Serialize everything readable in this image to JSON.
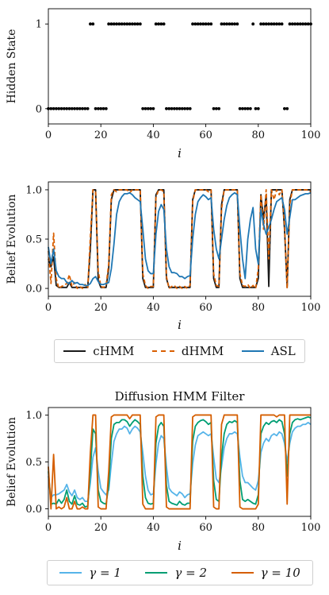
{
  "chart_data": [
    {
      "id": "hidden-state",
      "type": "scatter",
      "title": "",
      "xlabel": "i",
      "ylabel": "Hidden State",
      "xlim": [
        0,
        100
      ],
      "ylim": [
        -0.18,
        1.18
      ],
      "xticks": [
        "0",
        "20",
        "40",
        "60",
        "80",
        "100"
      ],
      "yticks": [
        "0",
        "1"
      ],
      "color": "#000000",
      "x": [
        0,
        1,
        2,
        3,
        4,
        5,
        6,
        7,
        8,
        9,
        10,
        11,
        12,
        13,
        14,
        15,
        16,
        17,
        18,
        19,
        20,
        21,
        22,
        23,
        24,
        25,
        26,
        27,
        28,
        29,
        30,
        31,
        32,
        33,
        34,
        35,
        36,
        37,
        38,
        39,
        40,
        41,
        42,
        43,
        44,
        45,
        46,
        47,
        48,
        49,
        50,
        51,
        52,
        53,
        54,
        55,
        56,
        57,
        58,
        59,
        60,
        61,
        62,
        63,
        64,
        65,
        66,
        67,
        68,
        69,
        70,
        71,
        72,
        73,
        74,
        75,
        76,
        77,
        78,
        79,
        80,
        81,
        82,
        83,
        84,
        85,
        86,
        87,
        88,
        89,
        90,
        91,
        92,
        93,
        94,
        95,
        96,
        97,
        98,
        99,
        100
      ],
      "values": [
        0,
        0,
        0,
        0,
        0,
        0,
        0,
        0,
        0,
        0,
        0,
        0,
        0,
        0,
        0,
        0,
        1,
        1,
        0,
        0,
        0,
        0,
        0,
        1,
        1,
        1,
        1,
        1,
        1,
        1,
        1,
        1,
        1,
        1,
        1,
        1,
        0,
        0,
        0,
        0,
        0,
        1,
        1,
        1,
        1,
        0,
        0,
        0,
        0,
        0,
        0,
        0,
        0,
        0,
        0,
        1,
        1,
        1,
        1,
        1,
        1,
        1,
        1,
        0,
        0,
        0,
        1,
        1,
        1,
        1,
        1,
        1,
        1,
        0,
        0,
        0,
        0,
        0,
        1,
        0,
        0,
        1,
        1,
        1,
        1,
        1,
        1,
        1,
        1,
        1,
        0,
        0,
        1,
        1,
        1,
        1,
        1,
        1,
        1,
        1,
        1
      ]
    },
    {
      "id": "belief-models",
      "type": "line",
      "title": "",
      "xlabel": "i",
      "ylabel": "Belief Evolution",
      "xlim": [
        0,
        100
      ],
      "ylim": [
        -0.08,
        1.08
      ],
      "xticks": [
        "0",
        "20",
        "40",
        "60",
        "80",
        "100"
      ],
      "yticks": [
        "0.0",
        "0.5",
        "1.0"
      ],
      "x": [
        0,
        1,
        2,
        3,
        4,
        5,
        6,
        7,
        8,
        9,
        10,
        11,
        12,
        13,
        14,
        15,
        16,
        17,
        18,
        19,
        20,
        21,
        22,
        23,
        24,
        25,
        26,
        27,
        28,
        29,
        30,
        31,
        32,
        33,
        34,
        35,
        36,
        37,
        38,
        39,
        40,
        41,
        42,
        43,
        44,
        45,
        46,
        47,
        48,
        49,
        50,
        51,
        52,
        53,
        54,
        55,
        56,
        57,
        58,
        59,
        60,
        61,
        62,
        63,
        64,
        65,
        66,
        67,
        68,
        69,
        70,
        71,
        72,
        73,
        74,
        75,
        76,
        77,
        78,
        79,
        80,
        81,
        82,
        83,
        84,
        85,
        86,
        87,
        88,
        89,
        90,
        91,
        92,
        93,
        94,
        95,
        96,
        97,
        98,
        99,
        100
      ],
      "series": [
        {
          "name": "cHMM",
          "color": "#1a1a1a",
          "dash": "",
          "values": [
            0.3,
            0.22,
            0.32,
            0.03,
            0.01,
            0.01,
            0.01,
            0.01,
            0.06,
            0.01,
            0.01,
            0.01,
            0.01,
            0.01,
            0.01,
            0.01,
            0.4,
            1.0,
            1.0,
            0.08,
            0.01,
            0.01,
            0.01,
            0.2,
            0.9,
            1.0,
            1.0,
            1.0,
            1.0,
            1.0,
            1.0,
            1.0,
            1.0,
            1.0,
            1.0,
            1.0,
            0.1,
            0.01,
            0.01,
            0.01,
            0.01,
            0.95,
            1.0,
            1.0,
            1.0,
            0.1,
            0.01,
            0.01,
            0.01,
            0.01,
            0.01,
            0.01,
            0.01,
            0.01,
            0.01,
            0.9,
            1.0,
            1.0,
            1.0,
            1.0,
            1.0,
            1.0,
            1.0,
            0.1,
            0.01,
            0.01,
            0.85,
            1.0,
            1.0,
            1.0,
            1.0,
            1.0,
            1.0,
            0.1,
            0.01,
            0.01,
            0.01,
            0.01,
            0.01,
            0.01,
            0.1,
            0.95,
            0.7,
            0.95,
            0.02,
            1.0,
            1.0,
            1.0,
            1.0,
            1.0,
            0.6,
            0.01,
            0.9,
            1.0,
            1.0,
            1.0,
            1.0,
            1.0,
            1.0,
            1.0,
            1.0
          ]
        },
        {
          "name": "dHMM",
          "color": "#d95f02",
          "dash": "5,3",
          "values": [
            0.38,
            0.05,
            0.56,
            0.1,
            0.0,
            0.02,
            0.03,
            0.05,
            0.14,
            0.02,
            0.06,
            0.0,
            0.02,
            0.0,
            0.04,
            0.0,
            0.52,
            1.0,
            0.98,
            0.18,
            0.02,
            0.01,
            0.03,
            0.25,
            0.95,
            1.0,
            0.98,
            1.0,
            1.0,
            1.0,
            1.0,
            0.97,
            1.0,
            1.0,
            1.0,
            1.0,
            0.15,
            0.03,
            0.0,
            0.02,
            0.02,
            0.92,
            1.0,
            1.0,
            0.98,
            0.12,
            0.0,
            0.02,
            0.03,
            0.0,
            0.02,
            0.0,
            0.02,
            0.0,
            0.03,
            0.88,
            1.0,
            1.0,
            1.0,
            1.0,
            1.0,
            0.98,
            1.0,
            0.15,
            0.03,
            0.02,
            0.8,
            1.0,
            1.0,
            1.0,
            1.0,
            1.0,
            1.0,
            0.15,
            0.03,
            0.02,
            0.04,
            0.0,
            0.03,
            0.0,
            0.2,
            0.95,
            0.6,
            1.0,
            0.3,
            1.0,
            0.9,
            1.0,
            0.95,
            1.0,
            0.65,
            0.0,
            0.85,
            1.0,
            1.0,
            1.0,
            1.0,
            1.0,
            1.0,
            1.0,
            0.98
          ]
        },
        {
          "name": "ASL",
          "color": "#1f77b4",
          "dash": "",
          "values": [
            0.42,
            0.25,
            0.4,
            0.18,
            0.12,
            0.1,
            0.1,
            0.06,
            0.05,
            0.08,
            0.05,
            0.06,
            0.04,
            0.04,
            0.03,
            0.03,
            0.05,
            0.1,
            0.12,
            0.07,
            0.04,
            0.04,
            0.05,
            0.06,
            0.2,
            0.45,
            0.75,
            0.88,
            0.93,
            0.96,
            0.96,
            0.97,
            0.95,
            0.92,
            0.9,
            0.88,
            0.6,
            0.3,
            0.18,
            0.15,
            0.15,
            0.55,
            0.78,
            0.85,
            0.8,
            0.4,
            0.22,
            0.16,
            0.16,
            0.15,
            0.12,
            0.12,
            0.1,
            0.12,
            0.13,
            0.5,
            0.75,
            0.88,
            0.92,
            0.95,
            0.93,
            0.9,
            0.92,
            0.6,
            0.4,
            0.3,
            0.5,
            0.7,
            0.84,
            0.92,
            0.95,
            0.97,
            0.95,
            0.6,
            0.3,
            0.1,
            0.5,
            0.7,
            0.82,
            0.4,
            0.25,
            0.8,
            0.65,
            0.55,
            0.62,
            0.7,
            0.8,
            0.88,
            0.9,
            0.92,
            0.8,
            0.55,
            0.72,
            0.9,
            0.9,
            0.92,
            0.94,
            0.95,
            0.96,
            0.96,
            0.97
          ]
        }
      ],
      "legend": "bottom-outside"
    },
    {
      "id": "diffusion-hmm",
      "type": "line",
      "title": "Diffusion HMM Filter",
      "xlabel": "i",
      "ylabel": "Belief Evolution",
      "xlim": [
        0,
        100
      ],
      "ylim": [
        -0.08,
        1.08
      ],
      "xticks": [
        "0",
        "20",
        "40",
        "60",
        "80",
        "100"
      ],
      "yticks": [
        "0.0",
        "0.5",
        "1.0"
      ],
      "x": [
        0,
        1,
        2,
        3,
        4,
        5,
        6,
        7,
        8,
        9,
        10,
        11,
        12,
        13,
        14,
        15,
        16,
        17,
        18,
        19,
        20,
        21,
        22,
        23,
        24,
        25,
        26,
        27,
        28,
        29,
        30,
        31,
        32,
        33,
        34,
        35,
        36,
        37,
        38,
        39,
        40,
        41,
        42,
        43,
        44,
        45,
        46,
        47,
        48,
        49,
        50,
        51,
        52,
        53,
        54,
        55,
        56,
        57,
        58,
        59,
        60,
        61,
        62,
        63,
        64,
        65,
        66,
        67,
        68,
        69,
        70,
        71,
        72,
        73,
        74,
        75,
        76,
        77,
        78,
        79,
        80,
        81,
        82,
        83,
        84,
        85,
        86,
        87,
        88,
        89,
        90,
        91,
        92,
        93,
        94,
        95,
        96,
        97,
        98,
        99,
        100
      ],
      "series": [
        {
          "name": "γ = 1",
          "color": "#56b4e9",
          "dash": "",
          "values": [
            0.35,
            0.12,
            0.15,
            0.15,
            0.16,
            0.18,
            0.2,
            0.26,
            0.18,
            0.14,
            0.2,
            0.12,
            0.1,
            0.12,
            0.08,
            0.08,
            0.28,
            0.55,
            0.65,
            0.4,
            0.22,
            0.18,
            0.15,
            0.2,
            0.48,
            0.72,
            0.8,
            0.85,
            0.85,
            0.88,
            0.86,
            0.8,
            0.85,
            0.88,
            0.86,
            0.82,
            0.6,
            0.35,
            0.2,
            0.15,
            0.16,
            0.48,
            0.7,
            0.78,
            0.75,
            0.45,
            0.22,
            0.18,
            0.16,
            0.14,
            0.18,
            0.16,
            0.12,
            0.15,
            0.16,
            0.48,
            0.68,
            0.78,
            0.8,
            0.82,
            0.8,
            0.78,
            0.8,
            0.55,
            0.32,
            0.28,
            0.45,
            0.65,
            0.75,
            0.8,
            0.8,
            0.82,
            0.8,
            0.55,
            0.35,
            0.28,
            0.28,
            0.25,
            0.22,
            0.2,
            0.3,
            0.6,
            0.7,
            0.75,
            0.72,
            0.78,
            0.8,
            0.78,
            0.82,
            0.8,
            0.7,
            0.5,
            0.7,
            0.82,
            0.86,
            0.88,
            0.88,
            0.9,
            0.9,
            0.92,
            0.9
          ]
        },
        {
          "name": "γ = 2",
          "color": "#009e73",
          "dash": "",
          "values": [
            0.4,
            0.05,
            0.06,
            0.05,
            0.1,
            0.06,
            0.1,
            0.2,
            0.08,
            0.05,
            0.14,
            0.05,
            0.04,
            0.06,
            0.02,
            0.03,
            0.4,
            0.85,
            0.8,
            0.2,
            0.08,
            0.06,
            0.05,
            0.25,
            0.75,
            0.9,
            0.92,
            0.92,
            0.95,
            0.95,
            0.93,
            0.88,
            0.92,
            0.95,
            0.93,
            0.9,
            0.35,
            0.12,
            0.06,
            0.05,
            0.06,
            0.7,
            0.88,
            0.92,
            0.88,
            0.25,
            0.08,
            0.06,
            0.05,
            0.04,
            0.08,
            0.05,
            0.04,
            0.06,
            0.06,
            0.72,
            0.88,
            0.92,
            0.94,
            0.95,
            0.93,
            0.9,
            0.92,
            0.3,
            0.1,
            0.08,
            0.55,
            0.8,
            0.9,
            0.93,
            0.92,
            0.94,
            0.92,
            0.3,
            0.1,
            0.08,
            0.1,
            0.08,
            0.06,
            0.05,
            0.15,
            0.8,
            0.88,
            0.92,
            0.9,
            0.93,
            0.94,
            0.92,
            0.95,
            0.93,
            0.8,
            0.35,
            0.8,
            0.92,
            0.95,
            0.96,
            0.95,
            0.96,
            0.97,
            0.98,
            0.97
          ]
        },
        {
          "name": "γ = 10",
          "color": "#d55e00",
          "dash": "",
          "values": [
            0.45,
            0.0,
            0.58,
            0.0,
            0.02,
            0.0,
            0.02,
            0.12,
            0.0,
            0.0,
            0.08,
            0.0,
            0.0,
            0.02,
            0.0,
            0.0,
            0.6,
            1.0,
            1.0,
            0.02,
            0.0,
            0.0,
            0.0,
            0.4,
            0.98,
            1.0,
            1.0,
            1.0,
            1.0,
            1.0,
            1.0,
            0.96,
            1.0,
            1.0,
            1.0,
            1.0,
            0.05,
            0.0,
            0.0,
            0.0,
            0.0,
            0.98,
            1.0,
            1.0,
            1.0,
            0.02,
            0.0,
            0.0,
            0.0,
            0.0,
            0.0,
            0.0,
            0.0,
            0.0,
            0.0,
            0.98,
            1.0,
            1.0,
            1.0,
            1.0,
            1.0,
            1.0,
            1.0,
            0.02,
            0.0,
            0.0,
            0.9,
            1.0,
            1.0,
            1.0,
            1.0,
            1.0,
            1.0,
            0.02,
            0.0,
            0.0,
            0.0,
            0.0,
            0.0,
            0.0,
            0.05,
            1.0,
            1.0,
            1.0,
            1.0,
            1.0,
            1.0,
            0.98,
            1.0,
            1.0,
            1.0,
            0.05,
            1.0,
            1.0,
            1.0,
            1.0,
            1.0,
            1.0,
            1.0,
            1.0,
            1.0
          ]
        }
      ],
      "legend": "bottom-outside"
    }
  ]
}
